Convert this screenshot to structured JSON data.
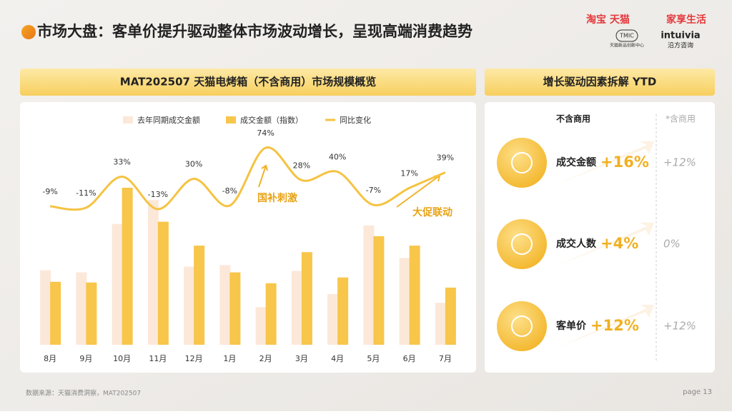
{
  "header": {
    "title": "市场大盘：客单价提升驱动整体市场波动增长，呈现高端消费趋势",
    "brand": "淘宝 天猫",
    "brand_sub": "家享生活",
    "tmic": "TMIC",
    "tmic_sub": "天猫新品创新中心",
    "partner": "intuivia",
    "partner_sub": "沿方咨询"
  },
  "chart_data": {
    "type": "bar",
    "title": "MAT202507 天猫电烤箱（不含商用）市场规模概览",
    "categories": [
      "8月",
      "9月",
      "10月",
      "11月",
      "12月",
      "1月",
      "2月",
      "3月",
      "4月",
      "5月",
      "6月",
      "7月"
    ],
    "series": [
      {
        "name": "去年同期成交金额",
        "color": "#fce8d9",
        "values": [
          103,
          100,
          167,
          200,
          108,
          110,
          52,
          102,
          70,
          165,
          120,
          58
        ]
      },
      {
        "name": "成交金额（指数）",
        "color": "#f7c64a",
        "values": [
          87,
          86,
          217,
          170,
          137,
          100,
          85,
          128,
          93,
          150,
          137,
          79
        ]
      },
      {
        "name": "同比变化",
        "type": "line",
        "axis": "y2",
        "color": "#f5c342",
        "values": [
          -9,
          -11,
          33,
          -13,
          30,
          -8,
          74,
          28,
          40,
          -7,
          17,
          39
        ],
        "value_labels": [
          "-9%",
          "-11%",
          "33%",
          "-13%",
          "30%",
          "-8%",
          "74%",
          "28%",
          "40%",
          "-7%",
          "17%",
          "39%"
        ]
      }
    ],
    "annotations": [
      "国补刺激",
      "大促联动"
    ]
  },
  "drivers": {
    "title": "增长驱动因素拆解 YTD",
    "col1": "不含商用",
    "col2": "*含商用",
    "rows": [
      {
        "label": "成交金额",
        "value": "+16%",
        "alt": "+12%"
      },
      {
        "label": "成交人数",
        "value": "+4%",
        "alt": "0%"
      },
      {
        "label": "客单价",
        "value": "+12%",
        "alt": "+12%"
      }
    ]
  },
  "footer": {
    "source": "数据来源：天猫消费洞察，MAT202507",
    "page": "page 13"
  }
}
